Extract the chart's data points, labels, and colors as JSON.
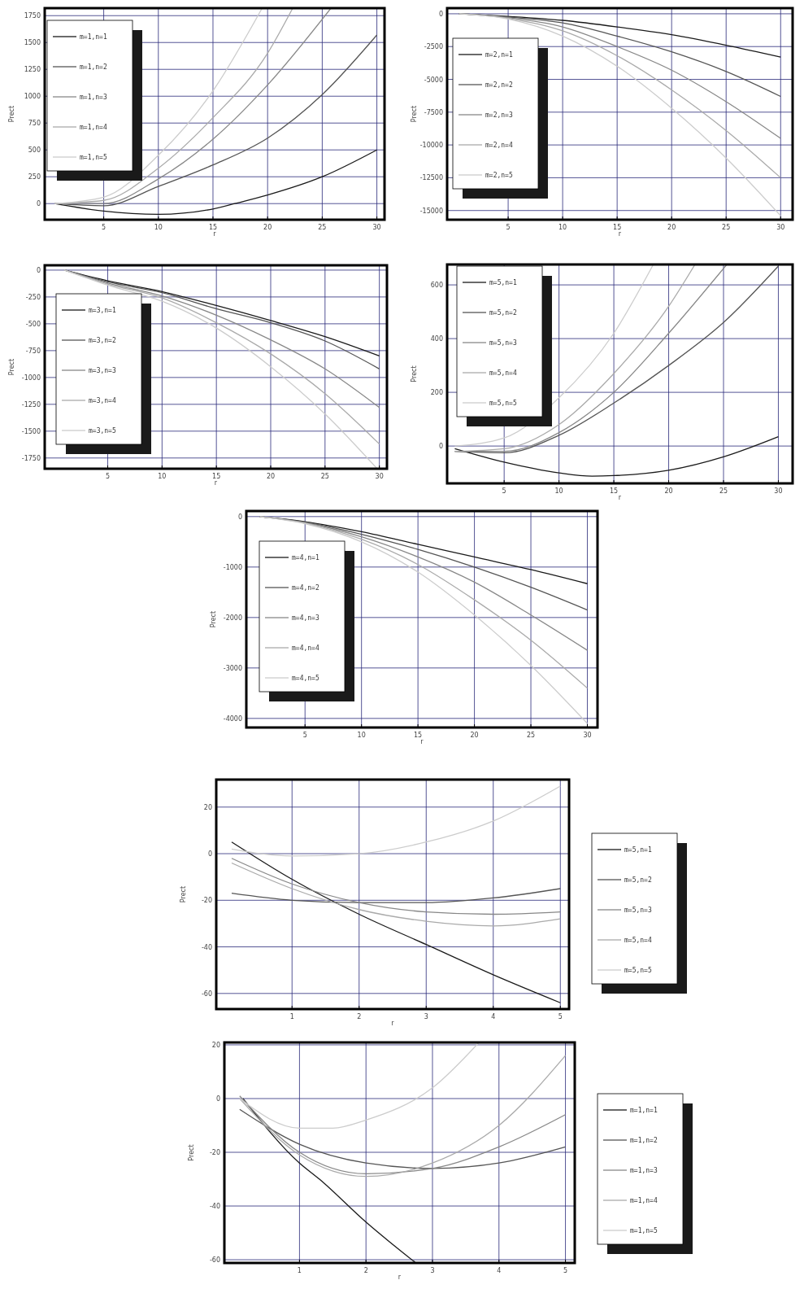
{
  "chart_data": [
    {
      "type": "line",
      "xlabel": "r",
      "ylabel": "Prect",
      "xlim": [
        -0.4,
        30.7
      ],
      "ylim": [
        -150,
        1820
      ],
      "xticks": [
        5,
        10,
        15,
        20,
        25,
        30
      ],
      "yticks": [
        0,
        250,
        500,
        750,
        1000,
        1250,
        1500,
        1750
      ],
      "grid": true,
      "legend": "top left",
      "series": [
        {
          "name": "m=1,n=1",
          "color": "#1a1a1a",
          "x": [
            0.5,
            5,
            10,
            15,
            17,
            20,
            25,
            30
          ],
          "values": [
            0,
            -70,
            -100,
            -50,
            0,
            80,
            250,
            500
          ]
        },
        {
          "name": "m=1,n=2",
          "color": "#555555",
          "x": [
            0.5,
            5,
            10,
            15,
            20,
            25,
            30
          ],
          "values": [
            0,
            -20,
            160,
            360,
            610,
            1015,
            1570
          ]
        },
        {
          "name": "m=1,n=3",
          "color": "#888888",
          "x": [
            0.5,
            5,
            10,
            15,
            20,
            25.8
          ],
          "values": [
            0,
            0,
            230,
            600,
            1105,
            1820
          ]
        },
        {
          "name": "m=1,n=4",
          "color": "#aaaaaa",
          "x": [
            0.5,
            5,
            10,
            15,
            20,
            22.3
          ],
          "values": [
            0,
            30,
            330,
            800,
            1400,
            1820
          ]
        },
        {
          "name": "m=1,n=5",
          "color": "#cccccc",
          "x": [
            0.5,
            5,
            10,
            15,
            19.5
          ],
          "values": [
            0,
            60,
            450,
            1050,
            1820
          ]
        }
      ]
    },
    {
      "type": "line",
      "xlabel": "r",
      "ylabel": "Prect",
      "xlim": [
        -0.6,
        31.1
      ],
      "ylim": [
        -15700,
        430
      ],
      "xticks": [
        5,
        10,
        15,
        20,
        25,
        30
      ],
      "yticks": [
        0,
        -2500,
        -5000,
        -7500,
        -10000,
        -12500,
        -15000
      ],
      "grid": true,
      "legend": "left",
      "series": [
        {
          "name": "m=2,n=1",
          "color": "#1a1a1a",
          "x": [
            0.5,
            5,
            10,
            15,
            20,
            25,
            30
          ],
          "values": [
            0,
            -200,
            -500,
            -1000,
            -1600,
            -2400,
            -3300
          ]
        },
        {
          "name": "m=2,n=2",
          "color": "#555555",
          "x": [
            0.5,
            5,
            10,
            15,
            20,
            25,
            30
          ],
          "values": [
            0,
            -250,
            -700,
            -1700,
            -2900,
            -4400,
            -6300
          ]
        },
        {
          "name": "m=2,n=3",
          "color": "#888888",
          "x": [
            0.5,
            5,
            10,
            15,
            20,
            25,
            30
          ],
          "values": [
            0,
            -300,
            -1000,
            -2500,
            -4300,
            -6700,
            -9500
          ]
        },
        {
          "name": "m=2,n=4",
          "color": "#aaaaaa",
          "x": [
            0.5,
            5,
            10,
            15,
            20,
            25,
            30
          ],
          "values": [
            0,
            -350,
            -1300,
            -3200,
            -5800,
            -8900,
            -12500
          ]
        },
        {
          "name": "m=2,n=5",
          "color": "#cccccc",
          "x": [
            0.5,
            5,
            10,
            15,
            20,
            25,
            30
          ],
          "values": [
            0,
            -400,
            -1700,
            -4000,
            -7200,
            -11000,
            -15400
          ]
        }
      ]
    },
    {
      "type": "line",
      "xlabel": "r",
      "ylabel": "Prect",
      "xlim": [
        -0.8,
        30.7
      ],
      "ylim": [
        -1850,
        45
      ],
      "xticks": [
        5,
        10,
        15,
        20,
        25,
        30
      ],
      "yticks": [
        0,
        -250,
        -500,
        -750,
        -1000,
        -1250,
        -1500,
        -1750
      ],
      "grid": true,
      "legend": "left",
      "series": [
        {
          "name": "m=3,n=1",
          "color": "#1a1a1a",
          "x": [
            1,
            5,
            10,
            15,
            20,
            25,
            30
          ],
          "values": [
            0,
            -100,
            -200,
            -330,
            -470,
            -620,
            -800
          ]
        },
        {
          "name": "m=3,n=2",
          "color": "#555555",
          "x": [
            1,
            5,
            10,
            15,
            20,
            25,
            30
          ],
          "values": [
            0,
            -110,
            -210,
            -360,
            -490,
            -660,
            -920
          ]
        },
        {
          "name": "m=3,n=3",
          "color": "#888888",
          "x": [
            1,
            5,
            10,
            15,
            20,
            25,
            30
          ],
          "values": [
            0,
            -120,
            -240,
            -420,
            -650,
            -920,
            -1280
          ]
        },
        {
          "name": "m=3,n=4",
          "color": "#aaaaaa",
          "x": [
            1,
            5,
            10,
            15,
            20,
            25,
            30
          ],
          "values": [
            0,
            -130,
            -260,
            -490,
            -780,
            -1150,
            -1620
          ]
        },
        {
          "name": "m=3,n=5",
          "color": "#cccccc",
          "x": [
            1,
            5,
            10,
            15,
            20,
            25,
            29.8
          ],
          "values": [
            0,
            -140,
            -290,
            -540,
            -900,
            -1340,
            -1850
          ]
        }
      ]
    },
    {
      "type": "line",
      "xlabel": "r",
      "ylabel": "Prect",
      "xlim": [
        -0.2,
        31.3
      ],
      "ylim": [
        -139,
        676
      ],
      "xticks": [
        5,
        10,
        15,
        20,
        25,
        30
      ],
      "yticks": [
        0,
        200,
        400,
        600
      ],
      "grid": true,
      "legend": "top left",
      "series": [
        {
          "name": "m=5,n=1",
          "color": "#1a1a1a",
          "x": [
            0.5,
            5,
            10,
            13,
            15,
            20,
            25,
            30
          ],
          "values": [
            -10,
            -60,
            -100,
            -112,
            -110,
            -90,
            -40,
            35
          ]
        },
        {
          "name": "m=5,n=2",
          "color": "#555555",
          "x": [
            0.5,
            5,
            10,
            15,
            20,
            25,
            30
          ],
          "values": [
            -20,
            -25,
            40,
            160,
            300,
            460,
            670
          ]
        },
        {
          "name": "m=5,n=3",
          "color": "#888888",
          "x": [
            0.5,
            5,
            10,
            15,
            20,
            25.3
          ],
          "values": [
            -20,
            -20,
            50,
            200,
            420,
            676
          ]
        },
        {
          "name": "m=5,n=4",
          "color": "#aaaaaa",
          "x": [
            0.5,
            5,
            10,
            15,
            20,
            22.4
          ],
          "values": [
            -20,
            -10,
            80,
            270,
            520,
            676
          ]
        },
        {
          "name": "m=5,n=5",
          "color": "#cccccc",
          "x": [
            0.5,
            5,
            10,
            15,
            18.6
          ],
          "values": [
            0,
            30,
            180,
            420,
            676
          ]
        }
      ]
    },
    {
      "type": "line",
      "xlabel": "r",
      "ylabel": "Prect",
      "xlim": [
        -0.2,
        30.9
      ],
      "ylim": [
        -4180,
        110
      ],
      "xticks": [
        5,
        10,
        15,
        20,
        25,
        30
      ],
      "yticks": [
        0,
        -1000,
        -2000,
        -3000,
        -4000
      ],
      "grid": true,
      "legend": "top left",
      "series": [
        {
          "name": "m=4,n=1",
          "color": "#1a1a1a",
          "x": [
            1,
            5,
            10,
            15,
            20,
            25,
            30
          ],
          "values": [
            0,
            -100,
            -300,
            -550,
            -800,
            -1050,
            -1330
          ]
        },
        {
          "name": "m=4,n=2",
          "color": "#555555",
          "x": [
            1,
            5,
            10,
            15,
            20,
            25,
            30
          ],
          "values": [
            0,
            -110,
            -350,
            -650,
            -1000,
            -1400,
            -1850
          ]
        },
        {
          "name": "m=4,n=3",
          "color": "#888888",
          "x": [
            1,
            5,
            10,
            15,
            20,
            25,
            30
          ],
          "values": [
            0,
            -120,
            -400,
            -800,
            -1300,
            -1950,
            -2650
          ]
        },
        {
          "name": "m=4,n=4",
          "color": "#aaaaaa",
          "x": [
            1,
            5,
            10,
            15,
            20,
            25,
            30
          ],
          "values": [
            0,
            -130,
            -450,
            -950,
            -1650,
            -2450,
            -3400
          ]
        },
        {
          "name": "m=4,n=5",
          "color": "#cccccc",
          "x": [
            1,
            5,
            10,
            15,
            20,
            25,
            30
          ],
          "values": [
            0,
            -140,
            -500,
            -1100,
            -1950,
            -2950,
            -4100
          ]
        }
      ]
    },
    {
      "type": "line",
      "xlabel": "r",
      "ylabel": "Prect",
      "xlim": [
        -0.13,
        5.13
      ],
      "ylim": [
        -66.7,
        31.8
      ],
      "xticks": [
        1,
        2,
        3,
        4,
        5
      ],
      "yticks": [
        20,
        0,
        -20,
        -40,
        -60
      ],
      "grid": true,
      "legend": "right",
      "series": [
        {
          "name": "m=5,n=1",
          "color": "#1a1a1a",
          "x": [
            0.1,
            1,
            2,
            3,
            4,
            5
          ],
          "values": [
            5,
            -11,
            -26,
            -39,
            -52,
            -64
          ]
        },
        {
          "name": "m=5,n=2",
          "color": "#555555",
          "x": [
            0.1,
            1,
            2,
            3,
            4,
            5
          ],
          "values": [
            -17,
            -20,
            -21,
            -21,
            -19,
            -15
          ]
        },
        {
          "name": "m=5,n=3",
          "color": "#888888",
          "x": [
            0.1,
            1,
            2,
            3,
            4,
            5
          ],
          "values": [
            -2,
            -13,
            -21,
            -25,
            -26,
            -25
          ]
        },
        {
          "name": "m=5,n=4",
          "color": "#aaaaaa",
          "x": [
            0.1,
            1,
            2,
            3,
            4,
            5
          ],
          "values": [
            -4,
            -15,
            -24,
            -29,
            -31,
            -28
          ]
        },
        {
          "name": "m=5,n=5",
          "color": "#cccccc",
          "x": [
            0.1,
            1,
            2,
            3,
            4,
            5
          ],
          "values": [
            2,
            -1,
            0,
            5,
            14,
            29
          ]
        }
      ]
    },
    {
      "type": "line",
      "xlabel": "r",
      "ylabel": "Prect",
      "xlim": [
        -0.13,
        5.14
      ],
      "ylim": [
        -61.2,
        20.9
      ],
      "xticks": [
        1,
        2,
        3,
        4,
        5
      ],
      "yticks": [
        20,
        0,
        -20,
        -40,
        -60
      ],
      "grid": true,
      "legend": "right",
      "series": [
        {
          "name": "m=1,n=1",
          "color": "#1a1a1a",
          "x": [
            0.15,
            1,
            1.3,
            2,
            2.75
          ],
          "values": [
            0,
            -24,
            -30,
            -46,
            -61.2
          ]
        },
        {
          "name": "m=1,n=2",
          "color": "#555555",
          "x": [
            0.1,
            1,
            2,
            3,
            4,
            5
          ],
          "values": [
            -4,
            -17,
            -24,
            -26,
            -24,
            -18
          ]
        },
        {
          "name": "m=1,n=3",
          "color": "#888888",
          "x": [
            0.1,
            1,
            2,
            3,
            4,
            5
          ],
          "values": [
            1,
            -20,
            -28,
            -26,
            -18,
            -6
          ]
        },
        {
          "name": "m=1,n=4",
          "color": "#aaaaaa",
          "x": [
            0.1,
            1,
            2,
            3,
            4,
            5
          ],
          "values": [
            0,
            -21,
            -29,
            -24,
            -10,
            16
          ]
        },
        {
          "name": "m=1,n=5",
          "color": "#cccccc",
          "x": [
            0.1,
            1,
            1.5,
            2,
            3,
            3.7
          ],
          "values": [
            0,
            -11,
            -11,
            -8,
            4,
            20.9
          ]
        }
      ]
    }
  ]
}
